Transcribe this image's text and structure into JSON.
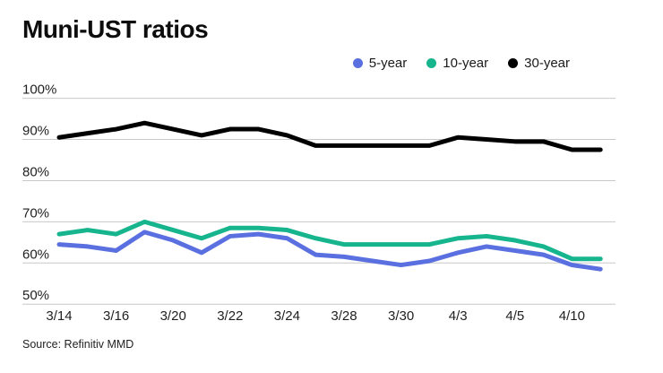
{
  "page": {
    "title": "Muni-UST ratios",
    "source": "Source: Refinitiv MMD"
  },
  "colors": {
    "five_year": "#5a6fe0",
    "ten_year": "#16b58e",
    "thirty_year": "#000000",
    "gridline": "#c8c8c8",
    "axis_text": "#1f1f1f"
  },
  "chart_data": {
    "type": "line",
    "title": "Muni-UST ratios",
    "x": [
      "3/14",
      "3/15",
      "3/16",
      "3/17",
      "3/20",
      "3/21",
      "3/22",
      "3/23",
      "3/24",
      "3/27",
      "3/28",
      "3/29",
      "3/30",
      "3/31",
      "4/3",
      "4/4",
      "4/5",
      "4/6",
      "4/10",
      "4/11"
    ],
    "x_tick_indices": [
      0,
      2,
      4,
      6,
      8,
      10,
      12,
      14,
      16,
      18
    ],
    "x_tick_labels": [
      "3/14",
      "3/16",
      "3/20",
      "3/22",
      "3/24",
      "3/28",
      "3/30",
      "4/3",
      "4/5",
      "4/10"
    ],
    "series": [
      {
        "name": "5-year",
        "color": "#5a6fe0",
        "values": [
          64.5,
          64,
          63,
          67.5,
          65.5,
          62.5,
          66.5,
          67,
          66,
          62,
          61.5,
          60.5,
          59.5,
          60.5,
          62.5,
          64,
          63,
          62,
          59.5,
          58.5
        ]
      },
      {
        "name": "10-year",
        "color": "#16b58e",
        "values": [
          67,
          68,
          67,
          70,
          68,
          66,
          68.5,
          68.5,
          68,
          66,
          64.5,
          64.5,
          64.5,
          64.5,
          66,
          66.5,
          65.5,
          64,
          61,
          61
        ]
      },
      {
        "name": "30-year",
        "color": "#000000",
        "values": [
          90.5,
          91.5,
          92.5,
          94,
          92.5,
          91,
          92.5,
          92.5,
          91,
          88.5,
          88.5,
          88.5,
          88.5,
          88.5,
          90.5,
          90,
          89.5,
          89.5,
          87.5,
          87.5
        ]
      }
    ],
    "ylim": [
      50,
      100
    ],
    "yticks": [
      100,
      90,
      80,
      70,
      60,
      50
    ],
    "ytick_format": "percent",
    "grid": "horizontal",
    "legend_position": "top-right"
  }
}
